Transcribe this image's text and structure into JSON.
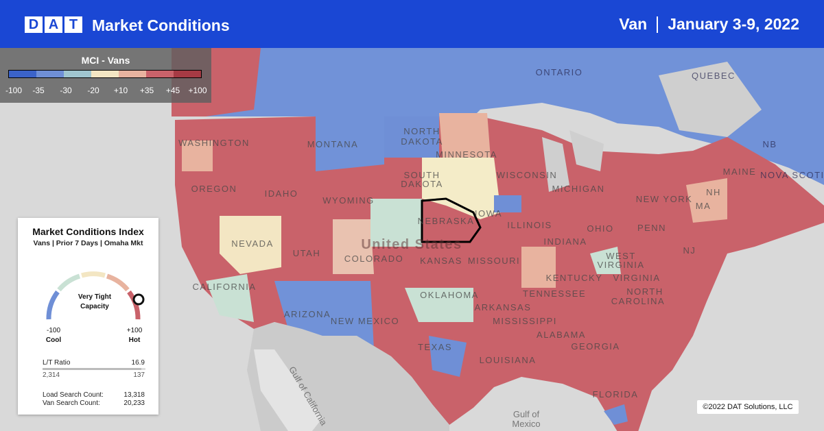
{
  "header": {
    "brand": [
      "D",
      "A",
      "T"
    ],
    "title": "Market Conditions",
    "equipment": "Van",
    "date": "January 3-9, 2022"
  },
  "legend": {
    "title": "MCI - Vans",
    "ticks": [
      "-100",
      "-35",
      "-30",
      "-20",
      "+10",
      "+35",
      "+45",
      "+100"
    ]
  },
  "map": {
    "labels": [
      "ONTARIO",
      "QUEBEC",
      "NORTH",
      "DAKOTA",
      "SOUTH",
      "DAKOTA",
      "MONTANA",
      "WASHINGTON",
      "OREGON",
      "IDAHO",
      "WYOMING",
      "NEBRASKA",
      "United States",
      "KANSAS",
      "COLORADO",
      "UTAH",
      "NEVADA",
      "CALIFORNIA",
      "ARIZONA",
      "NEW MEXICO",
      "OKLAHOMA",
      "TEXAS",
      "LOUISIANA",
      "ARKANSAS",
      "MISSISSIPPI",
      "ALABAMA",
      "GEORGIA",
      "FLORIDA",
      "TENNESSEE",
      "KENTUCKY",
      "MISSOURI",
      "IOWA",
      "MINNESOTA",
      "WISCONSIN",
      "MICHIGAN",
      "ILLINOIS",
      "INDIANA",
      "OHIO",
      "PENN",
      "NEW YORK",
      "MAINE",
      "NB",
      "NOVA SCOTIA",
      "VIRGINIA",
      "WEST",
      "VIRGINIA",
      "NORTH",
      "CAROLINA",
      "NJ",
      "MA",
      "NH"
    ],
    "seas": [
      "Gulf of",
      "Mexico",
      "Gulf of California"
    ]
  },
  "panel": {
    "title": "Market Conditions Index",
    "subtitle": "Vans | Prior 7 Days | Omaha Mkt",
    "gauge_label": [
      "Very Tight",
      "Capacity"
    ],
    "min": "-100",
    "min_label": "Cool",
    "max": "+100",
    "max_label": "Hot",
    "ratio_label": "L/T Ratio",
    "ratio": "16.9",
    "loads": "2,314",
    "trucks": "137",
    "load_search_label": "Load Search Count:",
    "load_search": "13,318",
    "van_search_label": "Van Search Count:",
    "van_search": "20,233"
  },
  "footer": {
    "copyright": "©2022 DAT Solutions, LLC"
  }
}
